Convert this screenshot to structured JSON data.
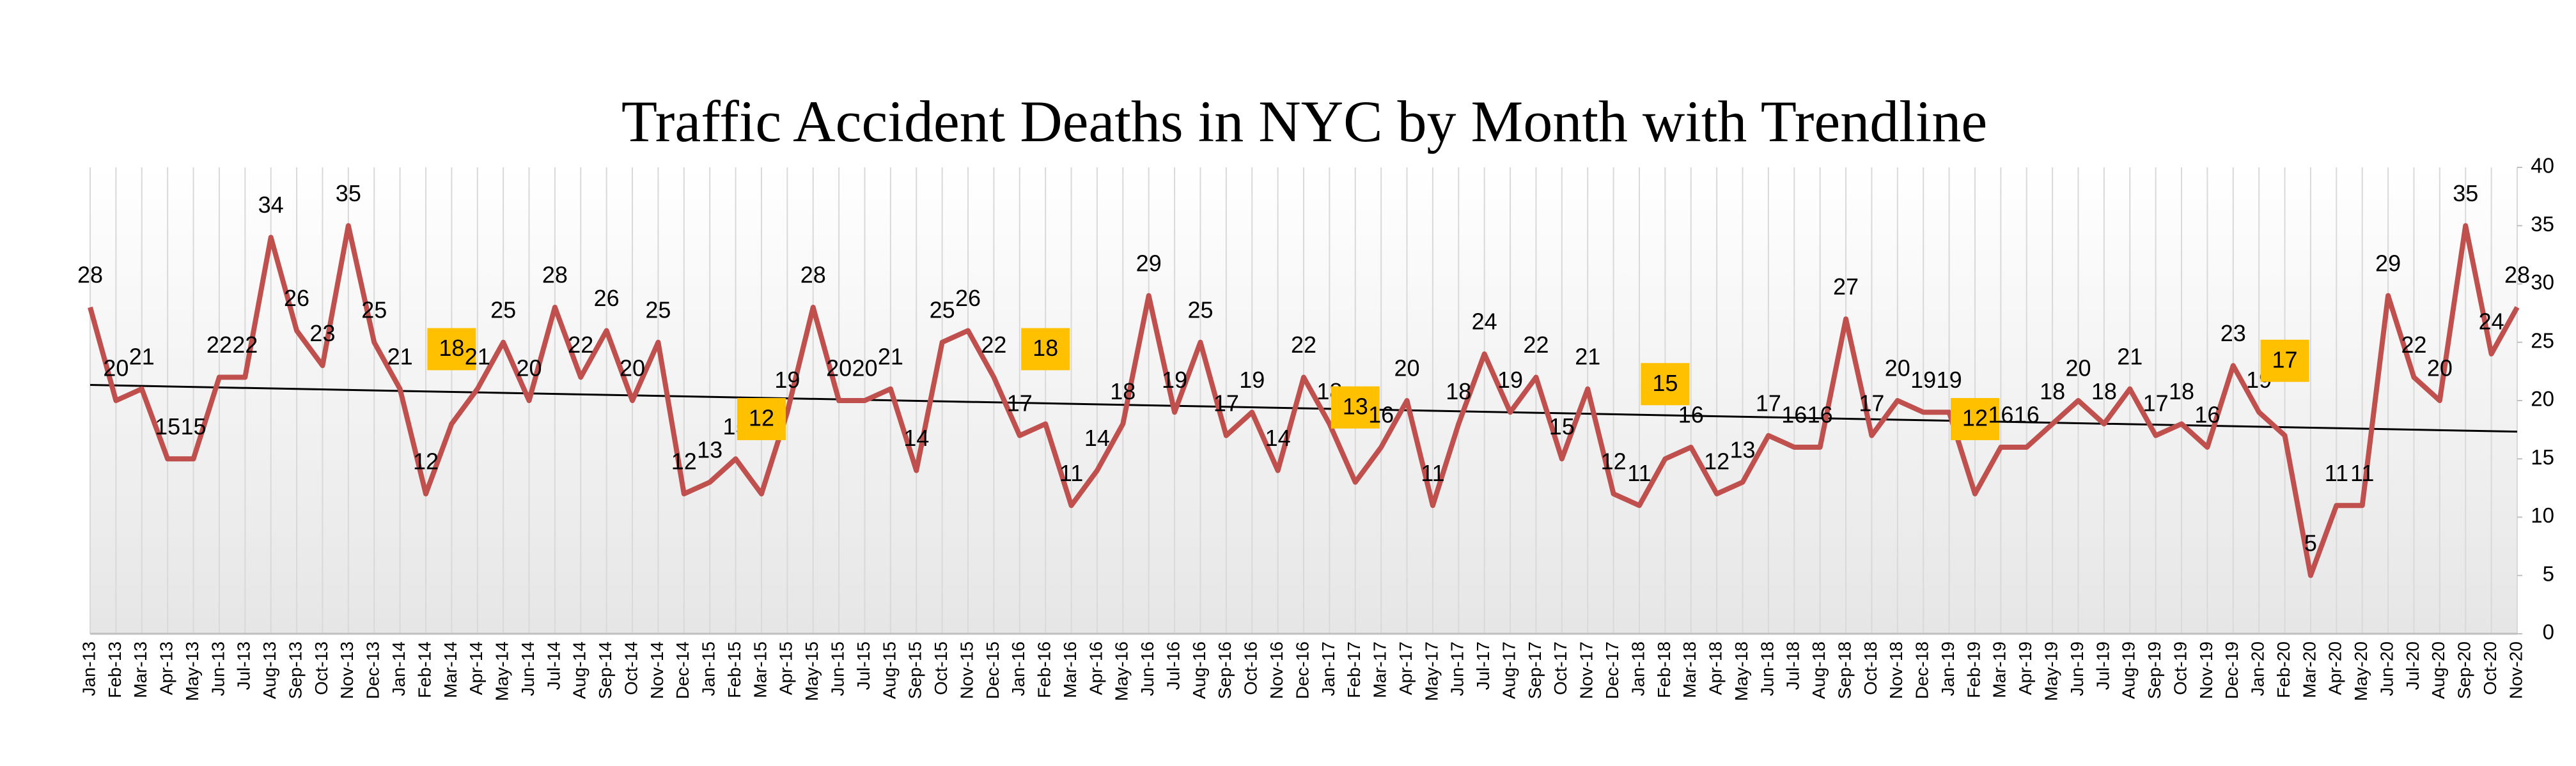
{
  "chart_data": {
    "type": "line",
    "title": "Traffic Accident Deaths in NYC  by Month with  Trendline",
    "categories": [
      "Jan-13",
      "Feb-13",
      "Mar-13",
      "Apr-13",
      "May-13",
      "Jun-13",
      "Jul-13",
      "Aug-13",
      "Sep-13",
      "Oct-13",
      "Nov-13",
      "Dec-13",
      "Jan-14",
      "Feb-14",
      "Mar-14",
      "Apr-14",
      "May-14",
      "Jun-14",
      "Jul-14",
      "Aug-14",
      "Sep-14",
      "Oct-14",
      "Nov-14",
      "Dec-14",
      "Jan-15",
      "Feb-15",
      "Mar-15",
      "Apr-15",
      "May-15",
      "Jun-15",
      "Jul-15",
      "Aug-15",
      "Sep-15",
      "Oct-15",
      "Nov-15",
      "Dec-15",
      "Jan-16",
      "Feb-16",
      "Mar-16",
      "Apr-16",
      "May-16",
      "Jun-16",
      "Jul-16",
      "Aug-16",
      "Sep-16",
      "Oct-16",
      "Nov-16",
      "Dec-16",
      "Jan-17",
      "Feb-17",
      "Mar-17",
      "Apr-17",
      "May-17",
      "Jun-17",
      "Jul-17",
      "Aug-17",
      "Sep-17",
      "Oct-17",
      "Nov-17",
      "Dec-17",
      "Jan-18",
      "Feb-18",
      "Mar-18",
      "Apr-18",
      "May-18",
      "Jun-18",
      "Jul-18",
      "Aug-18",
      "Sep-18",
      "Oct-18",
      "Nov-18",
      "Dec-18",
      "Jan-19",
      "Feb-19",
      "Mar-19",
      "Apr-19",
      "May-19",
      "Jun-19",
      "Jul-19",
      "Aug-19",
      "Sep-19",
      "Oct-19",
      "Nov-19",
      "Dec-19",
      "Jan-20",
      "Feb-20",
      "Mar-20",
      "Apr-20",
      "May-20",
      "Jun-20",
      "Jul-20",
      "Aug-20",
      "Sep-20",
      "Oct-20",
      "Nov-20"
    ],
    "values": [
      28,
      20,
      21,
      15,
      15,
      22,
      22,
      34,
      26,
      23,
      35,
      25,
      21,
      12,
      18,
      21,
      25,
      20,
      28,
      22,
      26,
      20,
      25,
      12,
      13,
      15,
      12,
      19,
      28,
      20,
      20,
      21,
      14,
      25,
      26,
      22,
      17,
      18,
      11,
      14,
      18,
      29,
      19,
      25,
      17,
      19,
      14,
      22,
      18,
      13,
      16,
      20,
      11,
      18,
      24,
      19,
      22,
      15,
      21,
      12,
      11,
      15,
      16,
      12,
      13,
      17,
      16,
      16,
      27,
      17,
      20,
      19,
      19,
      12,
      16,
      16,
      18,
      20,
      18,
      21,
      17,
      18,
      16,
      23,
      19,
      17,
      5,
      11,
      11,
      29,
      22,
      20,
      35,
      24,
      28
    ],
    "color": "#c0504d",
    "highlight_categories": [
      "Mar-14",
      "Mar-15",
      "Feb-16",
      "Feb-17",
      "Feb-18",
      "Feb-19",
      "Feb-20"
    ],
    "highlight_color": "#ffc000",
    "trendline": true,
    "ylim": [
      0,
      40
    ],
    "yticks": [
      0,
      5,
      10,
      15,
      20,
      25,
      30,
      35,
      40
    ],
    "grid": true
  }
}
